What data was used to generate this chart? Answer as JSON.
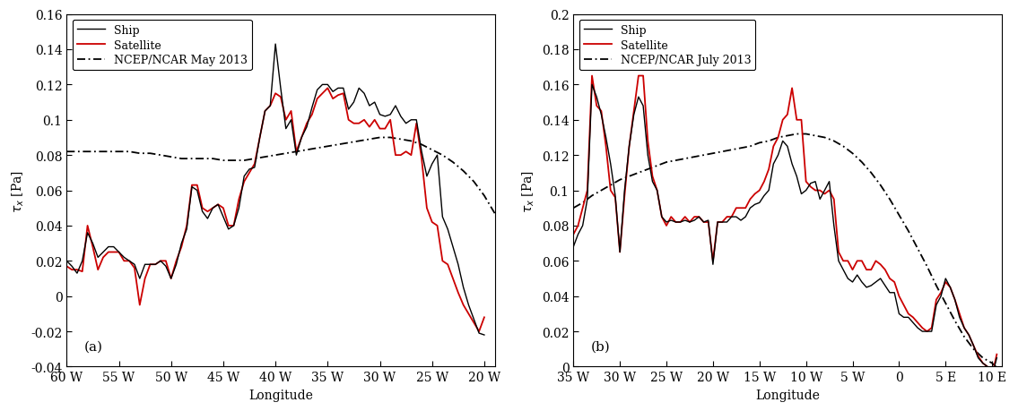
{
  "panel_a": {
    "title": "(a)",
    "xlabel": "Longitude",
    "ylabel": "tau_x [Pa]",
    "xlim": [
      -60,
      -19
    ],
    "ylim": [
      -0.04,
      0.16
    ],
    "xticks": [
      -60,
      -55,
      -50,
      -45,
      -40,
      -35,
      -30,
      -25,
      -20
    ],
    "xticklabels": [
      "60 W",
      "55 W",
      "50 W",
      "45 W",
      "40 W",
      "35 W",
      "30 W",
      "25 W",
      "20 W"
    ],
    "yticks": [
      -0.04,
      -0.02,
      0.0,
      0.02,
      0.04,
      0.06,
      0.08,
      0.1,
      0.12,
      0.14,
      0.16
    ],
    "yticklabels": [
      "-0.04",
      "-0.02",
      "0",
      "0.02",
      "0.04",
      "0.06",
      "0.08",
      "0.1",
      "0.12",
      "0.14",
      "0.16"
    ],
    "legend_label_ncep": "NCEP/NCAR May 2013",
    "ship_x": [
      -60,
      -59.5,
      -59,
      -58.5,
      -58,
      -57.5,
      -57,
      -56.5,
      -56,
      -55.5,
      -55,
      -54.5,
      -54,
      -53.5,
      -53,
      -52.5,
      -52,
      -51.5,
      -51,
      -50.5,
      -50,
      -49.5,
      -49,
      -48.5,
      -48,
      -47.5,
      -47,
      -46.5,
      -46,
      -45.5,
      -45,
      -44.5,
      -44,
      -43.5,
      -43,
      -42.5,
      -42,
      -41.5,
      -41,
      -40.5,
      -40,
      -39.5,
      -39,
      -38.5,
      -38,
      -37.5,
      -37,
      -36.5,
      -36,
      -35.5,
      -35,
      -34.5,
      -34,
      -33.5,
      -33,
      -32.5,
      -32,
      -31.5,
      -31,
      -30.5,
      -30,
      -29.5,
      -29,
      -28.5,
      -28,
      -27.5,
      -27,
      -26.5,
      -26,
      -25.5,
      -25,
      -24.5,
      -24,
      -23.5,
      -23,
      -22.5,
      -22,
      -21.5,
      -21,
      -20.5,
      -20
    ],
    "ship_y": [
      0.02,
      0.017,
      0.013,
      0.02,
      0.036,
      0.03,
      0.022,
      0.025,
      0.028,
      0.028,
      0.025,
      0.022,
      0.02,
      0.018,
      0.01,
      0.018,
      0.018,
      0.018,
      0.02,
      0.017,
      0.01,
      0.018,
      0.03,
      0.038,
      0.062,
      0.06,
      0.048,
      0.044,
      0.05,
      0.052,
      0.045,
      0.038,
      0.04,
      0.05,
      0.068,
      0.072,
      0.073,
      0.09,
      0.105,
      0.108,
      0.143,
      0.118,
      0.095,
      0.1,
      0.08,
      0.09,
      0.096,
      0.107,
      0.117,
      0.12,
      0.12,
      0.116,
      0.118,
      0.118,
      0.106,
      0.11,
      0.118,
      0.115,
      0.108,
      0.11,
      0.103,
      0.102,
      0.103,
      0.108,
      0.102,
      0.098,
      0.1,
      0.1,
      0.082,
      0.068,
      0.075,
      0.08,
      0.045,
      0.038,
      0.028,
      0.018,
      0.005,
      -0.005,
      -0.013,
      -0.021,
      -0.022
    ],
    "satellite_x": [
      -60,
      -59.5,
      -59,
      -58.5,
      -58,
      -57.5,
      -57,
      -56.5,
      -56,
      -55.5,
      -55,
      -54.5,
      -54,
      -53.5,
      -53,
      -52.5,
      -52,
      -51.5,
      -51,
      -50.5,
      -50,
      -49.5,
      -49,
      -48.5,
      -48,
      -47.5,
      -47,
      -46.5,
      -46,
      -45.5,
      -45,
      -44.5,
      -44,
      -43.5,
      -43,
      -42.5,
      -42,
      -41.5,
      -41,
      -40.5,
      -40,
      -39.5,
      -39,
      -38.5,
      -38,
      -37.5,
      -37,
      -36.5,
      -36,
      -35.5,
      -35,
      -34.5,
      -34,
      -33.5,
      -33,
      -32.5,
      -32,
      -31.5,
      -31,
      -30.5,
      -30,
      -29.5,
      -29,
      -28.5,
      -28,
      -27.5,
      -27,
      -26.5,
      -26,
      -25.5,
      -25,
      -24.5,
      -24,
      -23.5,
      -23,
      -22.5,
      -22,
      -21.5,
      -21,
      -20.5,
      -20
    ],
    "satellite_y": [
      0.017,
      0.015,
      0.015,
      0.014,
      0.04,
      0.028,
      0.015,
      0.022,
      0.025,
      0.025,
      0.025,
      0.02,
      0.02,
      0.016,
      -0.005,
      0.01,
      0.018,
      0.018,
      0.02,
      0.02,
      0.01,
      0.02,
      0.028,
      0.04,
      0.063,
      0.063,
      0.05,
      0.048,
      0.05,
      0.052,
      0.05,
      0.04,
      0.04,
      0.055,
      0.065,
      0.07,
      0.075,
      0.09,
      0.105,
      0.108,
      0.115,
      0.113,
      0.1,
      0.105,
      0.082,
      0.09,
      0.098,
      0.103,
      0.112,
      0.115,
      0.118,
      0.112,
      0.114,
      0.115,
      0.1,
      0.098,
      0.098,
      0.1,
      0.096,
      0.1,
      0.095,
      0.095,
      0.1,
      0.08,
      0.08,
      0.082,
      0.08,
      0.098,
      0.078,
      0.05,
      0.042,
      0.04,
      0.02,
      0.018,
      0.01,
      0.002,
      -0.005,
      -0.01,
      -0.015,
      -0.02,
      -0.012
    ],
    "ncep_x": [
      -60,
      -59,
      -58,
      -57,
      -56,
      -55,
      -54,
      -53,
      -52,
      -51,
      -50,
      -49,
      -48,
      -47,
      -46,
      -45,
      -44,
      -43,
      -42,
      -41,
      -40,
      -39,
      -38,
      -37,
      -36,
      -35,
      -34,
      -33,
      -32,
      -31,
      -30,
      -29,
      -28,
      -27,
      -26,
      -25,
      -24,
      -23,
      -22,
      -21,
      -20,
      -19
    ],
    "ncep_y": [
      0.082,
      0.082,
      0.082,
      0.082,
      0.082,
      0.082,
      0.082,
      0.081,
      0.081,
      0.08,
      0.079,
      0.078,
      0.078,
      0.078,
      0.078,
      0.077,
      0.077,
      0.077,
      0.078,
      0.079,
      0.08,
      0.081,
      0.082,
      0.083,
      0.084,
      0.085,
      0.086,
      0.087,
      0.088,
      0.089,
      0.09,
      0.09,
      0.089,
      0.088,
      0.086,
      0.083,
      0.08,
      0.076,
      0.071,
      0.065,
      0.057,
      0.047
    ]
  },
  "panel_b": {
    "title": "(b)",
    "xlabel": "Longitude",
    "ylabel": "tau_x [Pa]",
    "xlim": [
      -35,
      11
    ],
    "ylim": [
      0.0,
      0.2
    ],
    "xticks": [
      -35,
      -30,
      -25,
      -20,
      -15,
      -10,
      -5,
      0,
      5,
      10
    ],
    "xticklabels": [
      "35 W",
      "30 W",
      "25 W",
      "20 W",
      "15 W",
      "10 W",
      "5 W",
      "0",
      "5 E",
      "10 E"
    ],
    "yticks": [
      0.0,
      0.02,
      0.04,
      0.06,
      0.08,
      0.1,
      0.12,
      0.14,
      0.16,
      0.18,
      0.2
    ],
    "yticklabels": [
      "0",
      "0.02",
      "0.04",
      "0.06",
      "0.08",
      "0.1",
      "0.12",
      "0.14",
      "0.16",
      "0.18",
      "0.2"
    ],
    "legend_label_ncep": "NCEP/NCAR July 2013",
    "ship_x": [
      -35,
      -34.5,
      -34,
      -33.5,
      -33,
      -32.5,
      -32,
      -31.5,
      -31,
      -30.5,
      -30,
      -29.5,
      -29,
      -28.5,
      -28,
      -27.5,
      -27,
      -26.5,
      -26,
      -25.5,
      -25,
      -24.5,
      -24,
      -23.5,
      -23,
      -22.5,
      -22,
      -21.5,
      -21,
      -20.5,
      -20,
      -19.5,
      -19,
      -18.5,
      -18,
      -17.5,
      -17,
      -16.5,
      -16,
      -15.5,
      -15,
      -14.5,
      -14,
      -13.5,
      -13,
      -12.5,
      -12,
      -11.5,
      -11,
      -10.5,
      -10,
      -9.5,
      -9,
      -8.5,
      -8,
      -7.5,
      -7,
      -6.5,
      -6,
      -5.5,
      -5,
      -4.5,
      -4,
      -3.5,
      -3,
      -2.5,
      -2,
      -1.5,
      -1,
      -0.5,
      0,
      0.5,
      1,
      1.5,
      2,
      2.5,
      3,
      3.5,
      4,
      4.5,
      5,
      5.5,
      6,
      6.5,
      7,
      7.5,
      8,
      8.5,
      9,
      9.5,
      10,
      10.5
    ],
    "ship_y": [
      0.068,
      0.075,
      0.08,
      0.095,
      0.16,
      0.153,
      0.143,
      0.13,
      0.115,
      0.097,
      0.065,
      0.1,
      0.125,
      0.143,
      0.153,
      0.148,
      0.12,
      0.105,
      0.1,
      0.085,
      0.082,
      0.083,
      0.082,
      0.082,
      0.083,
      0.082,
      0.083,
      0.085,
      0.082,
      0.083,
      0.058,
      0.082,
      0.082,
      0.082,
      0.085,
      0.085,
      0.083,
      0.085,
      0.09,
      0.092,
      0.093,
      0.097,
      0.1,
      0.115,
      0.12,
      0.128,
      0.125,
      0.115,
      0.108,
      0.098,
      0.1,
      0.104,
      0.105,
      0.095,
      0.1,
      0.105,
      0.08,
      0.06,
      0.055,
      0.05,
      0.048,
      0.052,
      0.048,
      0.045,
      0.046,
      0.048,
      0.05,
      0.046,
      0.042,
      0.042,
      0.03,
      0.028,
      0.028,
      0.025,
      0.022,
      0.02,
      0.02,
      0.02,
      0.035,
      0.04,
      0.05,
      0.045,
      0.038,
      0.028,
      0.022,
      0.018,
      0.012,
      0.005,
      0.002,
      0.0,
      -0.005,
      0.005
    ],
    "satellite_x": [
      -35,
      -34.5,
      -34,
      -33.5,
      -33,
      -32.5,
      -32,
      -31.5,
      -31,
      -30.5,
      -30,
      -29.5,
      -29,
      -28.5,
      -28,
      -27.5,
      -27,
      -26.5,
      -26,
      -25.5,
      -25,
      -24.5,
      -24,
      -23.5,
      -23,
      -22.5,
      -22,
      -21.5,
      -21,
      -20.5,
      -20,
      -19.5,
      -19,
      -18.5,
      -18,
      -17.5,
      -17,
      -16.5,
      -16,
      -15.5,
      -15,
      -14.5,
      -14,
      -13.5,
      -13,
      -12.5,
      -12,
      -11.5,
      -11,
      -10.5,
      -10,
      -9.5,
      -9,
      -8.5,
      -8,
      -7.5,
      -7,
      -6.5,
      -6,
      -5.5,
      -5,
      -4.5,
      -4,
      -3.5,
      -3,
      -2.5,
      -2,
      -1.5,
      -1,
      -0.5,
      0,
      0.5,
      1,
      1.5,
      2,
      2.5,
      3,
      3.5,
      4,
      4.5,
      5,
      5.5,
      6,
      6.5,
      7,
      7.5,
      8,
      8.5,
      9,
      9.5,
      10,
      10.5
    ],
    "satellite_y": [
      0.075,
      0.08,
      0.09,
      0.1,
      0.165,
      0.148,
      0.145,
      0.125,
      0.1,
      0.096,
      0.065,
      0.097,
      0.125,
      0.145,
      0.165,
      0.165,
      0.128,
      0.108,
      0.1,
      0.085,
      0.08,
      0.085,
      0.082,
      0.082,
      0.085,
      0.082,
      0.085,
      0.085,
      0.082,
      0.082,
      0.06,
      0.082,
      0.082,
      0.085,
      0.085,
      0.09,
      0.09,
      0.09,
      0.095,
      0.098,
      0.1,
      0.105,
      0.112,
      0.125,
      0.13,
      0.14,
      0.143,
      0.158,
      0.14,
      0.14,
      0.105,
      0.102,
      0.1,
      0.1,
      0.098,
      0.1,
      0.095,
      0.065,
      0.06,
      0.06,
      0.055,
      0.06,
      0.06,
      0.055,
      0.055,
      0.06,
      0.058,
      0.055,
      0.05,
      0.048,
      0.04,
      0.035,
      0.03,
      0.028,
      0.025,
      0.022,
      0.02,
      0.022,
      0.038,
      0.042,
      0.048,
      0.045,
      0.038,
      0.03,
      0.022,
      0.018,
      0.012,
      0.006,
      0.002,
      0.0,
      -0.005,
      0.007
    ],
    "ncep_x": [
      -35,
      -34,
      -33,
      -32,
      -31,
      -30,
      -29,
      -28,
      -27,
      -26,
      -25,
      -24,
      -23,
      -22,
      -21,
      -20,
      -19,
      -18,
      -17,
      -16,
      -15,
      -14,
      -13,
      -12,
      -11,
      -10,
      -9,
      -8,
      -7,
      -6,
      -5,
      -4,
      -3,
      -2,
      -1,
      0,
      1,
      2,
      3,
      4,
      5,
      6,
      7,
      8,
      9,
      10,
      11
    ],
    "ncep_y": [
      0.09,
      0.093,
      0.097,
      0.1,
      0.103,
      0.106,
      0.108,
      0.11,
      0.112,
      0.114,
      0.116,
      0.117,
      0.118,
      0.119,
      0.12,
      0.121,
      0.122,
      0.123,
      0.124,
      0.125,
      0.127,
      0.128,
      0.13,
      0.131,
      0.132,
      0.132,
      0.131,
      0.13,
      0.128,
      0.125,
      0.121,
      0.116,
      0.11,
      0.103,
      0.095,
      0.086,
      0.077,
      0.067,
      0.057,
      0.046,
      0.036,
      0.026,
      0.017,
      0.01,
      0.005,
      0.002,
      -0.003
    ]
  },
  "fig_background": "#ffffff",
  "ship_color": "#000000",
  "satellite_color": "#cc0000",
  "ncep_color": "#000000",
  "ship_lw": 1.0,
  "satellite_lw": 1.3,
  "ncep_lw": 1.3,
  "font_size": 10,
  "font_family": "DejaVu Serif"
}
